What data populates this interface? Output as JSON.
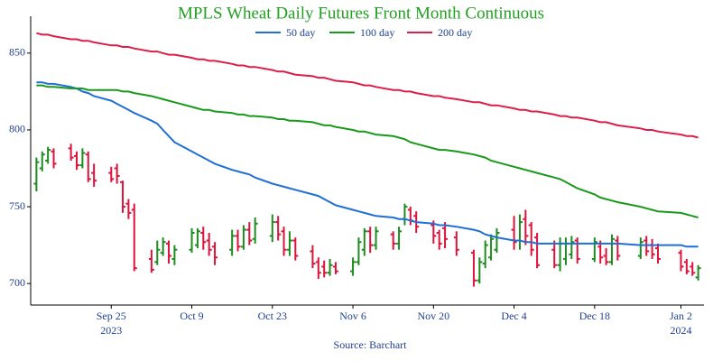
{
  "chart_data": {
    "type": "ohlc",
    "title": "MPLS Wheat Daily Futures Front Month Continuous",
    "source": "Source: Barchart",
    "legend": "top",
    "up_color": "#1e8c1e",
    "down_color": "#dc143c",
    "x": [
      "2023-09-12",
      "2023-09-13",
      "2023-09-14",
      "2023-09-15",
      "2023-09-18",
      "2023-09-19",
      "2023-09-20",
      "2023-09-21",
      "2023-09-22",
      "2023-09-25",
      "2023-09-26",
      "2023-09-27",
      "2023-09-28",
      "2023-09-29",
      "2023-10-02",
      "2023-10-03",
      "2023-10-04",
      "2023-10-05",
      "2023-10-06",
      "2023-10-09",
      "2023-10-10",
      "2023-10-11",
      "2023-10-12",
      "2023-10-13",
      "2023-10-16",
      "2023-10-17",
      "2023-10-18",
      "2023-10-19",
      "2023-10-20",
      "2023-10-23",
      "2023-10-24",
      "2023-10-25",
      "2023-10-26",
      "2023-10-27",
      "2023-10-30",
      "2023-10-31",
      "2023-11-01",
      "2023-11-02",
      "2023-11-03",
      "2023-11-06",
      "2023-11-07",
      "2023-11-08",
      "2023-11-09",
      "2023-11-10",
      "2023-11-13",
      "2023-11-14",
      "2023-11-15",
      "2023-11-16",
      "2023-11-17",
      "2023-11-20",
      "2023-11-21",
      "2023-11-22",
      "2023-11-24",
      "2023-11-27",
      "2023-11-28",
      "2023-11-29",
      "2023-11-30",
      "2023-12-01",
      "2023-12-04",
      "2023-12-05",
      "2023-12-06",
      "2023-12-07",
      "2023-12-08",
      "2023-12-11",
      "2023-12-12",
      "2023-12-13",
      "2023-12-14",
      "2023-12-15",
      "2023-12-18",
      "2023-12-19",
      "2023-12-20",
      "2023-12-21",
      "2023-12-22",
      "2023-12-26",
      "2023-12-27",
      "2023-12-28",
      "2023-12-29",
      "2024-01-02",
      "2024-01-03",
      "2024-01-04",
      "2024-01-05"
    ],
    "open": [
      765,
      775,
      780,
      786,
      788,
      783,
      777,
      784,
      772,
      772,
      775,
      766,
      752,
      748,
      716,
      714,
      720,
      726,
      716,
      722,
      725,
      733,
      728,
      724,
      722,
      731,
      724,
      735,
      729,
      731,
      740,
      734,
      722,
      728,
      721,
      714,
      711,
      707,
      711,
      708,
      714,
      722,
      734,
      725,
      732,
      726,
      742,
      748,
      744,
      738,
      733,
      736,
      730,
      720,
      702,
      713,
      717,
      722,
      735,
      728,
      742,
      738,
      730,
      722,
      712,
      716,
      719,
      728,
      716,
      724,
      718,
      714,
      728,
      718,
      728,
      725,
      723,
      720,
      714,
      711,
      704
    ],
    "high": [
      782,
      786,
      789,
      788,
      791,
      786,
      788,
      786,
      778,
      776,
      778,
      767,
      755,
      752,
      722,
      728,
      730,
      728,
      725,
      736,
      736,
      737,
      733,
      727,
      735,
      735,
      738,
      740,
      743,
      745,
      744,
      737,
      734,
      730,
      725,
      717,
      715,
      716,
      714,
      717,
      730,
      736,
      737,
      737,
      734,
      737,
      752,
      750,
      747,
      741,
      735,
      740,
      734,
      722,
      717,
      728,
      732,
      736,
      744,
      745,
      748,
      740,
      733,
      728,
      730,
      730,
      731,
      730,
      730,
      728,
      723,
      732,
      731,
      730,
      731,
      729,
      726,
      722,
      716,
      714,
      712
    ],
    "low": [
      760,
      773,
      778,
      775,
      780,
      774,
      775,
      766,
      763,
      766,
      765,
      746,
      742,
      708,
      707,
      712,
      718,
      713,
      712,
      720,
      723,
      722,
      718,
      712,
      718,
      721,
      722,
      725,
      726,
      727,
      728,
      718,
      718,
      715,
      710,
      703,
      704,
      705,
      706,
      705,
      712,
      718,
      720,
      722,
      722,
      722,
      738,
      738,
      733,
      726,
      722,
      723,
      718,
      698,
      700,
      710,
      715,
      720,
      722,
      722,
      725,
      718,
      710,
      710,
      708,
      712,
      716,
      713,
      714,
      713,
      712,
      712,
      715,
      716,
      718,
      716,
      713,
      708,
      706,
      705,
      702
    ],
    "close": [
      779,
      784,
      787,
      778,
      782,
      777,
      785,
      768,
      767,
      768,
      770,
      750,
      746,
      710,
      709,
      722,
      727,
      718,
      722,
      733,
      734,
      727,
      722,
      717,
      731,
      724,
      735,
      728,
      739,
      740,
      732,
      722,
      728,
      718,
      713,
      707,
      707,
      712,
      708,
      714,
      727,
      734,
      725,
      734,
      726,
      734,
      750,
      741,
      737,
      731,
      726,
      729,
      722,
      702,
      714,
      725,
      729,
      733,
      727,
      740,
      731,
      722,
      712,
      712,
      726,
      726,
      727,
      716,
      727,
      717,
      714,
      729,
      718,
      727,
      721,
      719,
      716,
      711,
      708,
      707,
      710
    ],
    "series": [
      {
        "name": "50 day",
        "color": "#1f6fd6",
        "values": [
          831,
          831,
          830,
          830,
          828,
          827,
          825,
          824,
          822,
          819,
          817,
          815,
          813,
          811,
          806,
          804,
          800,
          796,
          792,
          786,
          784,
          782,
          780,
          778,
          774,
          773,
          772,
          771,
          769,
          765,
          764,
          763,
          762,
          761,
          758,
          757,
          755,
          753,
          751,
          748,
          747,
          746,
          745,
          744,
          743,
          742,
          742,
          741,
          740,
          739,
          738,
          738,
          737,
          735,
          734,
          732,
          731,
          730,
          728,
          728,
          727,
          727,
          726,
          726,
          726,
          726,
          726,
          726,
          726,
          726,
          726,
          726,
          726,
          725,
          725,
          725,
          725,
          725,
          724,
          724,
          724
        ]
      },
      {
        "name": "100 day",
        "color": "#1a9a1a",
        "values": [
          829,
          829,
          828,
          828,
          827,
          827,
          827,
          826,
          826,
          826,
          826,
          825,
          825,
          824,
          822,
          821,
          820,
          819,
          818,
          815,
          814,
          813,
          813,
          812,
          811,
          810,
          810,
          809,
          809,
          808,
          807,
          807,
          806,
          806,
          805,
          804,
          803,
          803,
          802,
          800,
          799,
          799,
          798,
          797,
          796,
          795,
          794,
          792,
          791,
          788,
          787,
          787,
          786,
          784,
          783,
          782,
          780,
          779,
          776,
          775,
          774,
          773,
          772,
          769,
          768,
          766,
          764,
          762,
          758,
          756,
          755,
          754,
          753,
          750,
          749,
          748,
          747,
          746,
          745,
          744,
          743
        ]
      },
      {
        "name": "200 day",
        "color": "#dc1e4a",
        "values": [
          863,
          862,
          862,
          861,
          859,
          859,
          858,
          858,
          857,
          855,
          855,
          854,
          854,
          853,
          851,
          851,
          850,
          849,
          849,
          847,
          846,
          846,
          845,
          845,
          843,
          842,
          842,
          841,
          841,
          839,
          838,
          838,
          837,
          836,
          835,
          834,
          834,
          833,
          832,
          831,
          830,
          829,
          829,
          828,
          826,
          826,
          825,
          825,
          824,
          822,
          822,
          821,
          820,
          818,
          818,
          817,
          816,
          816,
          814,
          813,
          813,
          812,
          812,
          810,
          809,
          809,
          808,
          808,
          806,
          805,
          805,
          804,
          803,
          801,
          800,
          800,
          799,
          797,
          796,
          796,
          795
        ]
      }
    ],
    "xlim": [
      "2023-09-11",
      "2024-01-06"
    ],
    "xticks": [
      {
        "value": "2023-09-25",
        "label": "Sep 25"
      },
      {
        "value": "2023-10-09",
        "label": "Oct 9"
      },
      {
        "value": "2023-10-23",
        "label": "Oct 23"
      },
      {
        "value": "2023-11-06",
        "label": "Nov 6"
      },
      {
        "value": "2023-11-20",
        "label": "Nov 20"
      },
      {
        "value": "2023-12-04",
        "label": "Dec 4"
      },
      {
        "value": "2023-12-18",
        "label": "Dec 18"
      },
      {
        "value": "2024-01-02",
        "label": "Jan 2"
      }
    ],
    "xtick_years": [
      {
        "value": "2023-09-25",
        "label": "2023"
      },
      {
        "value": "2024-01-02",
        "label": "2024"
      }
    ],
    "ylim": [
      686,
      874
    ],
    "yticks": [
      700,
      750,
      800,
      850
    ],
    "grid": false
  }
}
